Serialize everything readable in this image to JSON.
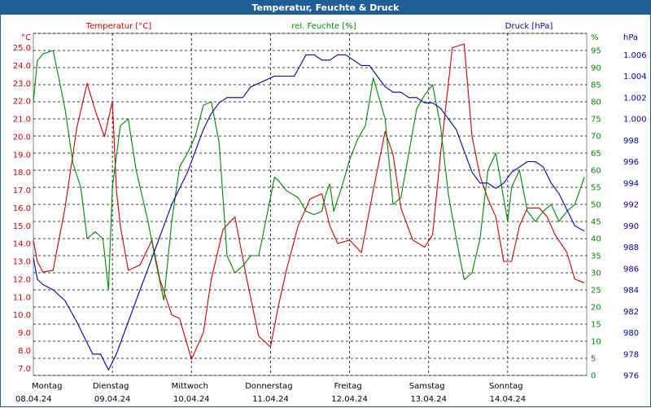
{
  "window": {
    "title": "Temperatur, Feuchte & Druck"
  },
  "colors": {
    "temperature": "#cc0000",
    "humidity": "#008800",
    "pressure": "#0000aa",
    "grid": "#000000",
    "title_bar": "#1f5e96"
  },
  "chart_data": {
    "type": "line",
    "title": "Temperatur, Feuchte & Druck",
    "legend": [
      "Temperatur [°C]",
      "rel. Feuchte [%]",
      "Druck [hPa]"
    ],
    "axes": {
      "temperature": {
        "unit": "°C",
        "ylim": [
          6.6,
          25.8
        ],
        "ticks": [
          "7.0",
          "8.0",
          "9.0",
          "10.0",
          "11.0",
          "12.0",
          "13.0",
          "14.0",
          "15.0",
          "16.0",
          "17.0",
          "18.0",
          "19.0",
          "20.0",
          "21.0",
          "22.0",
          "23.0",
          "24.0",
          "25.0"
        ]
      },
      "humidity": {
        "unit": "%",
        "ylim": [
          0,
          100
        ],
        "ticks": [
          "0",
          "5",
          "10",
          "15",
          "20",
          "25",
          "30",
          "35",
          "40",
          "45",
          "50",
          "55",
          "60",
          "65",
          "70",
          "75",
          "80",
          "85",
          "90",
          "95",
          "%"
        ]
      },
      "pressure": {
        "unit": "hPa",
        "ylim": [
          976,
          1008
        ],
        "ticks": [
          "976",
          "978",
          "980",
          "982",
          "984",
          "986",
          "988",
          "990",
          "992",
          "994",
          "996",
          "998",
          "1.000",
          "1.002",
          "1.004",
          "1.006"
        ]
      }
    },
    "x_range_days": [
      0,
      7
    ],
    "day_labels": [
      {
        "day": "Montag",
        "date": "08.04.24"
      },
      {
        "day": "Dienstag",
        "date": "09.04.24"
      },
      {
        "day": "Mittwoch",
        "date": "10.04.24"
      },
      {
        "day": "Donnerstag",
        "date": "11.04.24"
      },
      {
        "day": "Freitag",
        "date": "12.04.24"
      },
      {
        "day": "Samstag",
        "date": "13.04.24"
      },
      {
        "day": "Sonntag",
        "date": "14.04.24"
      }
    ],
    "series": [
      {
        "name": "Temperatur [°C]",
        "axis": "temperature",
        "x": [
          0,
          0.05,
          0.12,
          0.25,
          0.4,
          0.55,
          0.68,
          0.78,
          0.9,
          1.0,
          1.05,
          1.1,
          1.2,
          1.35,
          1.5,
          1.6,
          1.75,
          1.85,
          2.0,
          2.15,
          2.25,
          2.4,
          2.55,
          2.7,
          2.85,
          3.0,
          3.1,
          3.2,
          3.35,
          3.5,
          3.65,
          3.75,
          3.85,
          4.0,
          4.15,
          4.3,
          4.45,
          4.55,
          4.65,
          4.8,
          4.95,
          5.05,
          5.15,
          5.3,
          5.45,
          5.55,
          5.65,
          5.75,
          5.85,
          5.95,
          6.05,
          6.15,
          6.25,
          6.4,
          6.5,
          6.6,
          6.75,
          6.85,
          6.97
        ],
        "values": [
          14.2,
          13.0,
          12.4,
          12.5,
          16.0,
          20.5,
          23.0,
          21.5,
          20.0,
          22.0,
          17.0,
          15.0,
          12.5,
          12.8,
          14.2,
          12.0,
          10.0,
          9.8,
          7.5,
          9.0,
          12.0,
          14.8,
          15.5,
          12.0,
          8.8,
          8.2,
          10.5,
          12.5,
          15.0,
          16.5,
          16.8,
          15.0,
          14.0,
          14.2,
          13.5,
          17.0,
          20.3,
          19.0,
          16.0,
          14.2,
          13.8,
          14.5,
          19.0,
          25.0,
          25.2,
          20.0,
          17.8,
          16.5,
          15.5,
          13.0,
          13.0,
          15.0,
          16.0,
          16.0,
          15.5,
          14.5,
          13.5,
          12.0,
          11.8
        ]
      },
      {
        "name": "rel. Feuchte [%]",
        "axis": "humidity",
        "x": [
          0,
          0.05,
          0.12,
          0.25,
          0.4,
          0.5,
          0.6,
          0.68,
          0.78,
          0.88,
          0.95,
          1.0,
          1.1,
          1.2,
          1.3,
          1.45,
          1.55,
          1.65,
          1.75,
          1.85,
          1.95,
          2.05,
          2.15,
          2.25,
          2.35,
          2.45,
          2.55,
          2.65,
          2.75,
          2.85,
          3.0,
          3.05,
          3.1,
          3.2,
          3.35,
          3.45,
          3.55,
          3.65,
          3.7,
          3.75,
          3.8,
          3.9,
          4.0,
          4.1,
          4.2,
          4.3,
          4.45,
          4.55,
          4.65,
          4.75,
          4.85,
          4.95,
          5.05,
          5.15,
          5.25,
          5.35,
          5.45,
          5.55,
          5.65,
          5.75,
          5.85,
          6.0,
          6.05,
          6.15,
          6.25,
          6.35,
          6.45,
          6.55,
          6.65,
          6.75,
          6.85,
          6.97
        ],
        "values": [
          80,
          92,
          94,
          95,
          78,
          62,
          55,
          40,
          42,
          40,
          25,
          55,
          73,
          75,
          60,
          45,
          33,
          22,
          45,
          61,
          65,
          70,
          79,
          80,
          68,
          35,
          30,
          32,
          35,
          35,
          52,
          58,
          57,
          54,
          52,
          48,
          47,
          48,
          53,
          56,
          48,
          55,
          63,
          69,
          73,
          87,
          75,
          50,
          52,
          65,
          78,
          82,
          85,
          73,
          53,
          40,
          28,
          30,
          40,
          60,
          65,
          45,
          55,
          60,
          48,
          45,
          48,
          50,
          45,
          48,
          50,
          58
        ]
      },
      {
        "name": "Druck [hPa]",
        "axis": "pressure",
        "x": [
          0,
          0.05,
          0.12,
          0.25,
          0.4,
          0.55,
          0.65,
          0.75,
          0.85,
          0.95,
          1.05,
          1.15,
          1.25,
          1.35,
          1.45,
          1.55,
          1.65,
          1.75,
          1.85,
          1.95,
          2.05,
          2.15,
          2.25,
          2.35,
          2.45,
          2.55,
          2.65,
          2.75,
          2.9,
          3.05,
          3.15,
          3.3,
          3.45,
          3.55,
          3.65,
          3.75,
          3.85,
          3.95,
          4.05,
          4.15,
          4.25,
          4.35,
          4.45,
          4.55,
          4.65,
          4.75,
          4.85,
          4.95,
          5.05,
          5.15,
          5.25,
          5.35,
          5.45,
          5.55,
          5.65,
          5.75,
          5.85,
          5.95,
          6.05,
          6.15,
          6.25,
          6.35,
          6.45,
          6.55,
          6.65,
          6.75,
          6.85,
          6.97
        ],
        "values": [
          987,
          985,
          984.5,
          984,
          983,
          981,
          979.5,
          978,
          978,
          976.5,
          978,
          980,
          982,
          984,
          986,
          988,
          990,
          992,
          993.5,
          995,
          997,
          999,
          1000.5,
          1001.5,
          1002,
          1002,
          1002,
          1003,
          1003.5,
          1004,
          1004,
          1004,
          1006,
          1006,
          1005.5,
          1005.5,
          1006,
          1006,
          1005.5,
          1005,
          1005,
          1004,
          1003,
          1002.5,
          1002.5,
          1002,
          1002,
          1001.5,
          1001.5,
          1001,
          1000,
          999,
          997,
          995,
          994,
          994,
          993.5,
          994,
          995,
          995.5,
          996,
          996,
          995.5,
          994,
          993,
          991.5,
          990,
          989.5
        ]
      }
    ]
  }
}
